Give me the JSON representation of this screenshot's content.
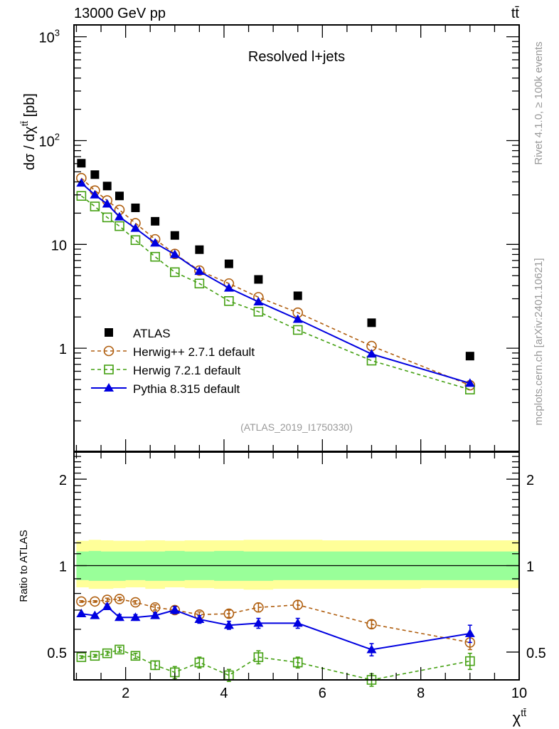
{
  "header": {
    "left_label": "13000 GeV pp",
    "right_label": "tt̄"
  },
  "side_labels": {
    "rivet": "Rivet 4.1.0, ≥ 100k events",
    "mcplots": "mcplots.cern.ch [arXiv:2401.10621]"
  },
  "chart_data": [
    {
      "type": "scatter",
      "panel": "main",
      "title": "Resolved l+jets",
      "analysis_id": "(ATLAS_2019_I1750330)",
      "xlabel": "χ^tt̄",
      "ylabel": "dσ / dχ^tt̄ [pb]",
      "yscale": "log",
      "xlim": [
        0.95,
        10
      ],
      "ylim": [
        0.1,
        1300
      ],
      "y_ticks": [
        {
          "v": 1000,
          "label": "10",
          "sup": "3"
        },
        {
          "v": 100,
          "label": "10",
          "sup": "2"
        },
        {
          "v": 10,
          "label": "10",
          "sup": ""
        },
        {
          "v": 1,
          "label": "1",
          "sup": ""
        }
      ],
      "legend_position": "lower-left",
      "x": [
        1.1,
        1.375,
        1.625,
        1.875,
        2.2,
        2.6,
        3.0,
        3.5,
        4.1,
        4.7,
        5.5,
        7.0,
        9.0
      ],
      "series": [
        {
          "name": "ATLAS",
          "marker": "filled-square",
          "color": "#000000",
          "line": "none",
          "values": [
            60.5,
            47.0,
            36.5,
            29.3,
            22.5,
            16.7,
            12.2,
            8.9,
            6.5,
            4.6,
            3.2,
            1.76,
            0.84
          ]
        },
        {
          "name": "Herwig++ 2.7.1 default",
          "marker": "open-circle",
          "color": "#b05f10",
          "line": "dashed",
          "values": [
            43.5,
            33.0,
            26.5,
            21.5,
            16.0,
            11.2,
            8.1,
            5.6,
            4.2,
            3.1,
            2.2,
            1.05,
            0.44
          ]
        },
        {
          "name": "Herwig 7.2.1 default",
          "marker": "open-square",
          "color": "#44a012",
          "line": "dashed",
          "values": [
            29.3,
            23.2,
            18.2,
            15.0,
            11.0,
            7.6,
            5.4,
            4.2,
            2.85,
            2.25,
            1.5,
            0.76,
            0.4
          ]
        },
        {
          "name": "Pythia 8.315 default",
          "marker": "filled-triangle",
          "color": "#0000e0",
          "line": "solid",
          "values": [
            39.0,
            30.0,
            24.5,
            18.4,
            14.3,
            10.3,
            8.0,
            5.5,
            3.8,
            2.8,
            1.9,
            0.88,
            0.46
          ]
        }
      ]
    },
    {
      "type": "scatter",
      "panel": "ratio",
      "ylabel": "Ratio to ATLAS",
      "xlabel": "χ^tt̄",
      "yscale": "log",
      "xlim": [
        0.95,
        10
      ],
      "ylim": [
        0.4,
        2.5
      ],
      "x_ticks": [
        2,
        4,
        6,
        8,
        10
      ],
      "y_ticks": [
        {
          "v": 2,
          "label": "2"
        },
        {
          "v": 1,
          "label": "1"
        },
        {
          "v": 0.5,
          "label": "0.5"
        }
      ],
      "x": [
        1.1,
        1.375,
        1.625,
        1.875,
        2.2,
        2.6,
        3.0,
        3.5,
        4.1,
        4.7,
        5.5,
        7.0,
        9.0
      ],
      "bands": {
        "stat_color": "#99ff99",
        "total_color": "#ffff99",
        "bin_edges": [
          1.0,
          1.25,
          1.5,
          1.75,
          2.0,
          2.4,
          2.8,
          3.2,
          3.8,
          4.4,
          5.0,
          6.0,
          8.0,
          10.0
        ],
        "inner_up": [
          1.12,
          1.125,
          1.12,
          1.12,
          1.12,
          1.12,
          1.125,
          1.12,
          1.125,
          1.12,
          1.12,
          1.12,
          1.12
        ],
        "inner_down": [
          0.89,
          0.885,
          0.885,
          0.885,
          0.89,
          0.885,
          0.885,
          0.89,
          0.885,
          0.885,
          0.89,
          0.89,
          0.89
        ],
        "outer_up": [
          1.22,
          1.23,
          1.225,
          1.22,
          1.22,
          1.225,
          1.22,
          1.225,
          1.225,
          1.23,
          1.23,
          1.225,
          1.225
        ],
        "outer_down": [
          0.84,
          0.83,
          0.83,
          0.835,
          0.84,
          0.83,
          0.84,
          0.835,
          0.83,
          0.825,
          0.83,
          0.83,
          0.835
        ]
      },
      "series": [
        {
          "name": "Herwig++ 2.7.1 default",
          "color": "#b05f10",
          "marker": "open-circle",
          "line": "dashed",
          "values": [
            0.75,
            0.75,
            0.76,
            0.765,
            0.745,
            0.715,
            0.7,
            0.675,
            0.68,
            0.715,
            0.73,
            0.625,
            0.54
          ],
          "errors": [
            0.005,
            0.005,
            0.01,
            0.01,
            0.01,
            0.015,
            0.02,
            0.015,
            0.02,
            0.025,
            0.025,
            0.02,
            0.03
          ]
        },
        {
          "name": "Herwig 7.2.1 default",
          "color": "#44a012",
          "marker": "open-square",
          "line": "dashed",
          "values": [
            0.48,
            0.485,
            0.495,
            0.51,
            0.485,
            0.45,
            0.425,
            0.46,
            0.415,
            0.48,
            0.46,
            0.4,
            0.465
          ],
          "errors": [
            0.005,
            0.005,
            0.008,
            0.01,
            0.01,
            0.015,
            0.02,
            0.02,
            0.02,
            0.025,
            0.02,
            0.02,
            0.03
          ]
        },
        {
          "name": "Pythia 8.315 default",
          "color": "#0000e0",
          "marker": "filled-triangle",
          "line": "solid",
          "values": [
            0.68,
            0.67,
            0.72,
            0.66,
            0.66,
            0.67,
            0.7,
            0.65,
            0.62,
            0.63,
            0.63,
            0.51,
            0.58
          ],
          "errors": [
            0.005,
            0.008,
            0.015,
            0.015,
            0.015,
            0.015,
            0.02,
            0.02,
            0.02,
            0.025,
            0.025,
            0.025,
            0.04
          ]
        }
      ]
    }
  ]
}
